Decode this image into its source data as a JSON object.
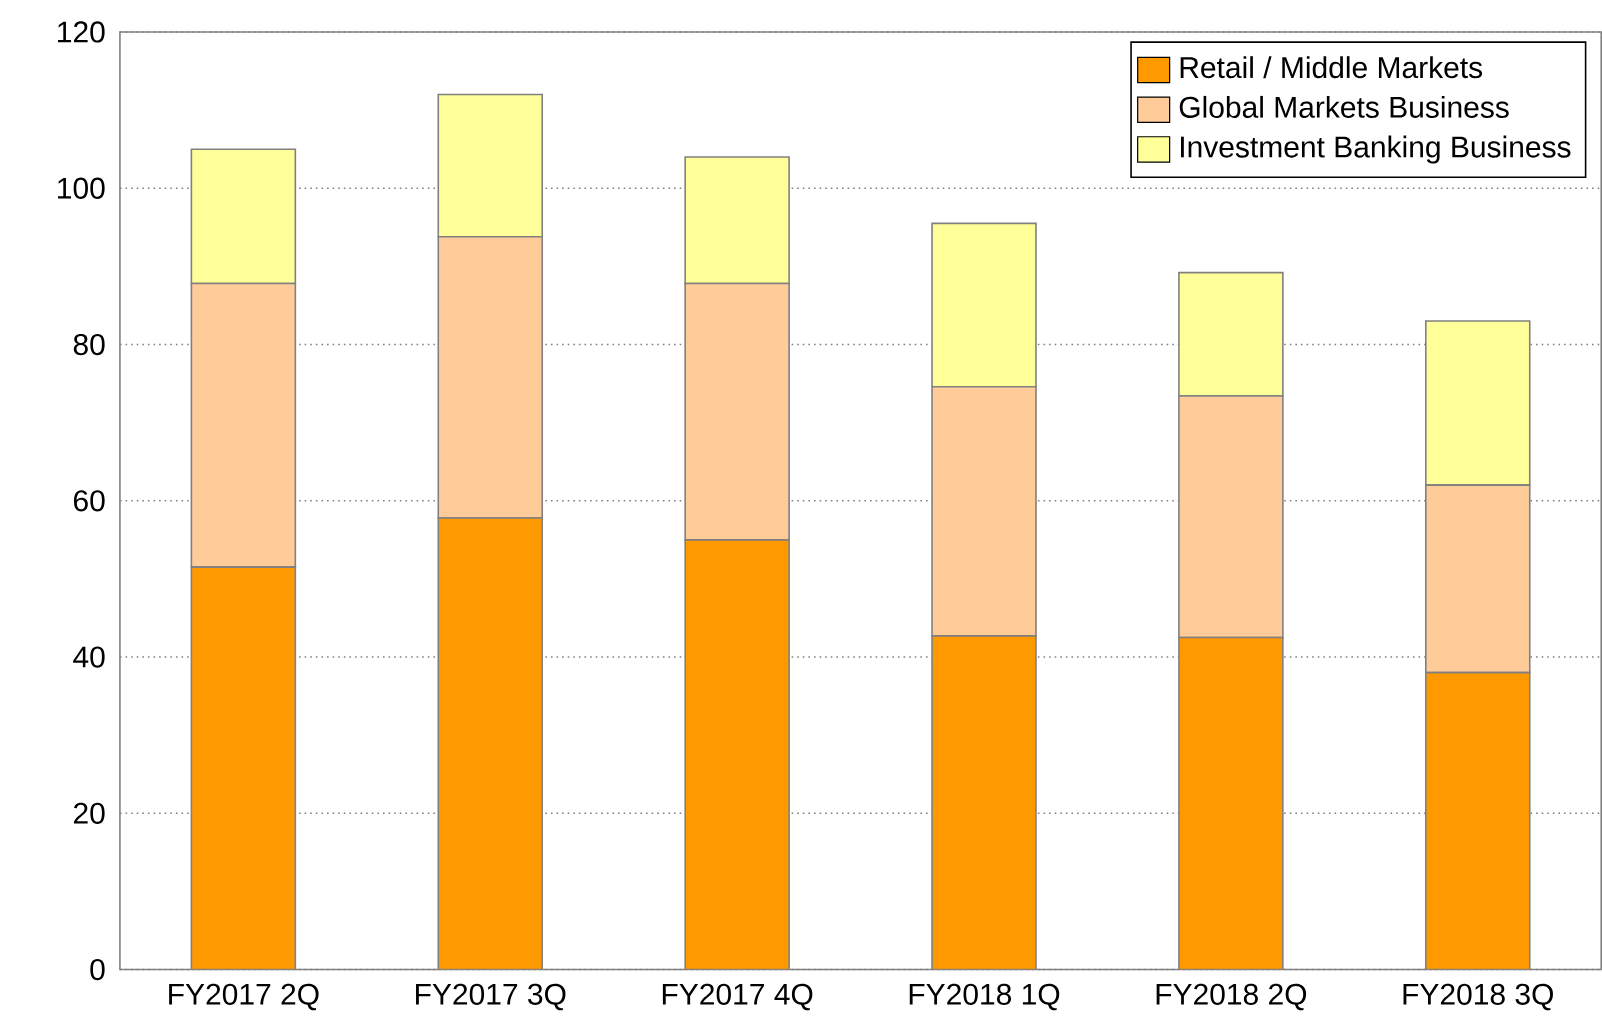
{
  "chart_data": {
    "type": "bar",
    "stacked": true,
    "categories": [
      "FY2017 2Q",
      "FY2017 3Q",
      "FY2017 4Q",
      "FY2018 1Q",
      "FY2018 2Q",
      "FY2018 3Q"
    ],
    "series": [
      {
        "name": "Retail / Middle Markets",
        "color": "#ff9900",
        "values": [
          51.5,
          57.8,
          55.0,
          42.7,
          42.5,
          38.0
        ]
      },
      {
        "name": "Global Markets Business",
        "color": "#ffcc99",
        "values": [
          36.3,
          36.0,
          32.8,
          31.9,
          30.9,
          24.0
        ]
      },
      {
        "name": "Investment Banking Business",
        "color": "#ffff99",
        "values": [
          17.2,
          18.2,
          16.2,
          20.9,
          15.8,
          21.0
        ]
      }
    ],
    "ylim": [
      0,
      120
    ],
    "yticks": [
      0,
      20,
      40,
      60,
      80,
      100,
      120
    ],
    "grid": "y",
    "legend": "top right"
  }
}
